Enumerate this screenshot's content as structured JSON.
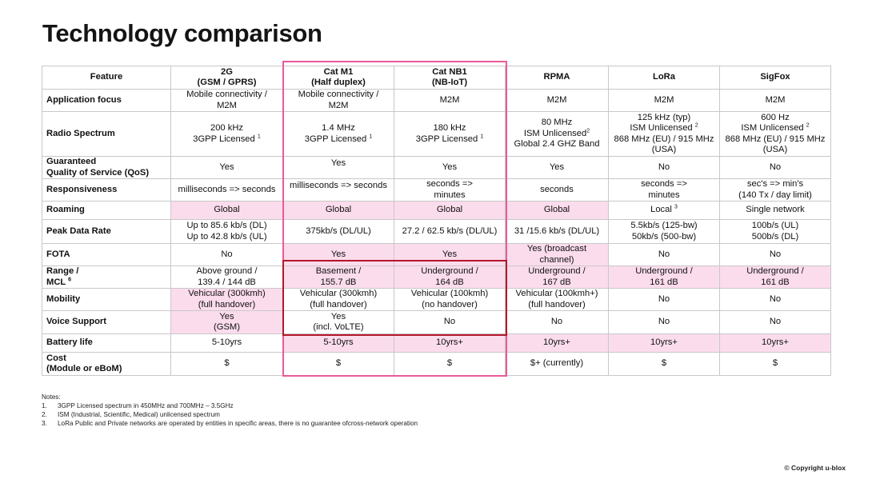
{
  "title": "Technology comparison",
  "table": {
    "headers": [
      {
        "l1": "Feature",
        "l2": ""
      },
      {
        "l1": "2G",
        "l2": "(GSM / GPRS)"
      },
      {
        "l1": "Cat M1",
        "l2": "(Half duplex)"
      },
      {
        "l1": "Cat NB1",
        "l2": "(NB-IoT)"
      },
      {
        "l1": "RPMA",
        "l2": ""
      },
      {
        "l1": "LoRa",
        "l2": ""
      },
      {
        "l1": "SigFox",
        "l2": ""
      }
    ],
    "rows": {
      "app": {
        "f": "Application focus",
        "c": [
          "Mobile connectivity  /\nM2M",
          "Mobile connectivity  /\nM2M",
          "M2M",
          "M2M",
          "M2M",
          "M2M"
        ]
      },
      "radio": {
        "f": "Radio Spectrum",
        "c1": "200 kHz",
        "c1b": "3GPP Licensed",
        "c2": "1.4 MHz",
        "c2b": "3GPP Licensed",
        "c3": "180 kHz",
        "c3b": "3GPP Licensed",
        "c4a": "80 MHz",
        "c4b": "ISM Unlicensed",
        "c4c": "Global 2.4 GHZ Band",
        "c5a": "125 kHz (typ)",
        "c5b": "ISM Unlicensed",
        "c5c": "868 MHz (EU) / 915 MHz\n(USA)",
        "c6a": "600 Hz",
        "c6b": "ISM Unlicensed",
        "c6c": "868 MHz (EU) / 915 MHz\n(USA)",
        "sup1": "1",
        "sup2": "2"
      },
      "qos": {
        "f": "Guaranteed\nQuality of Service (QoS)",
        "c": [
          "Yes",
          "Yes",
          "Yes",
          "Yes",
          "No",
          "No"
        ]
      },
      "resp": {
        "f": "Responsiveness",
        "c": [
          "milliseconds => seconds",
          "milliseconds => seconds",
          "seconds =>\nminutes",
          "seconds",
          "seconds =>\nminutes",
          "sec's => min's\n(140 Tx / day limit)"
        ]
      },
      "roam": {
        "f": "Roaming",
        "c": [
          "Global",
          "Global",
          "Global",
          "Global",
          "Local",
          "Single network"
        ],
        "sup3": "3"
      },
      "peak": {
        "f": "Peak Data Rate",
        "c": [
          "Up to 85.6 kb/s (DL)\nUp to 42.8 kb/s (UL)",
          "375kb/s (DL/UL)",
          "27.2 / 62.5 kb/s (DL/UL)",
          "31 /15.6 kb/s (DL/UL)",
          "5.5kb/s (125-bw)\n50kb/s (500-bw)",
          "100b/s (UL)\n500b/s (DL)"
        ]
      },
      "fota": {
        "f": "FOTA",
        "c": [
          "No",
          "Yes",
          "Yes",
          "Yes (broadcast\nchannel)",
          "No",
          "No"
        ]
      },
      "range": {
        "f": "Range /",
        "f2": "MCL",
        "sup6": "6",
        "c": [
          "Above ground /\n139.4 / 144 dB",
          "Basement /\n155.7 dB",
          "Underground /\n164 dB",
          "Underground /\n167 dB",
          "Underground /\n161 dB",
          "Underground /\n161 dB"
        ]
      },
      "mob": {
        "f": "Mobility",
        "c": [
          "Vehicular (300kmh)\n(full handover)",
          "Vehicular (300kmh)\n(full handover)",
          "Vehicular (100kmh)\n(no handover)",
          "Vehicular (100kmh+)\n(full handover)",
          "No",
          "No"
        ]
      },
      "voice": {
        "f": "Voice Support",
        "c": [
          "Yes\n(GSM)",
          "Yes\n(incl. VoLTE)",
          "No",
          "No",
          "No",
          "No"
        ]
      },
      "batt": {
        "f": "Battery life",
        "c": [
          "5-10yrs",
          "5-10yrs",
          "10yrs+",
          "10yrs+",
          "10yrs+",
          "10yrs+"
        ]
      },
      "cost": {
        "f": "Cost\n(Module or eBoM)",
        "c": [
          "$",
          "$",
          "$",
          "$+ (currently)",
          "$",
          "$"
        ]
      }
    }
  },
  "notes": {
    "label": "Notes:",
    "items": [
      {
        "n": "1.",
        "t": "3GPP Licensed spectrum in 450MHz and 700MHz – 3.5GHz"
      },
      {
        "n": "2.",
        "t": "ISM (Industrial, Scientific, Medical) unlicensed spectrum"
      },
      {
        "n": "3.",
        "t": "LoRa Public and Private networks are operated by entities in specific areas, there is no guarantee of",
        "t2": "cross-network operation"
      }
    ]
  },
  "copyright": "© Copyright u-blox",
  "colors": {
    "highlight_pink": "#fbdcec",
    "frame_pink": "#ea5a9a",
    "frame_red": "#b3182a"
  }
}
